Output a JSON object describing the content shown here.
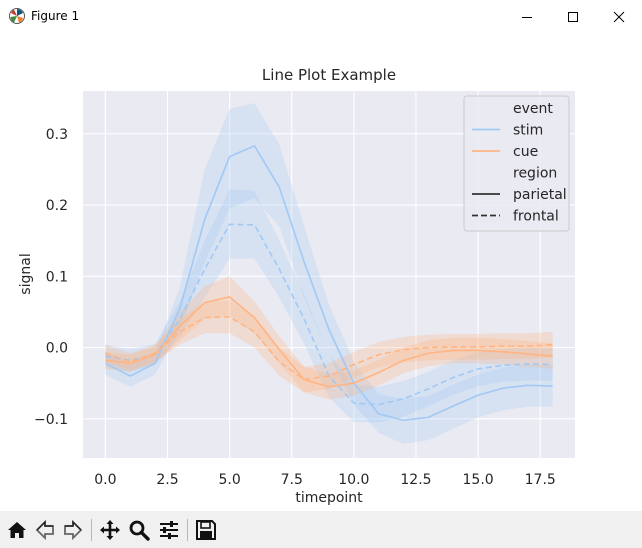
{
  "window": {
    "title": "Figure 1",
    "buttons": [
      "minimize",
      "maximize",
      "close"
    ]
  },
  "toolbar": {
    "tools": [
      "home-icon",
      "back-icon",
      "forward-icon",
      "pan-icon",
      "zoom-icon",
      "configure-icon",
      "save-icon"
    ]
  },
  "chart_data": {
    "type": "line",
    "title": "Line Plot Example",
    "xlabel": "timepoint",
    "ylabel": "signal",
    "xlim": [
      -0.9,
      18.9
    ],
    "ylim": [
      -0.155,
      0.36
    ],
    "xticks": [
      0.0,
      2.5,
      5.0,
      7.5,
      10.0,
      12.5,
      15.0,
      17.5
    ],
    "xtick_labels": [
      "0.0",
      "2.5",
      "5.0",
      "7.5",
      "10.0",
      "12.5",
      "15.0",
      "17.5"
    ],
    "yticks": [
      -0.1,
      0.0,
      0.1,
      0.2,
      0.3
    ],
    "ytick_labels": [
      "−0.1",
      "0.0",
      "0.1",
      "0.2",
      "0.3"
    ],
    "grid": true,
    "background": "#eaeaf2",
    "x": [
      0,
      1,
      2,
      3,
      4,
      5,
      6,
      7,
      8,
      9,
      10,
      11,
      12,
      13,
      14,
      15,
      16,
      17,
      18
    ],
    "series": [
      {
        "name": "stim / parietal",
        "event": "stim",
        "region": "parietal",
        "color": "#a1c9f4",
        "dash": "solid",
        "values": [
          -0.022,
          -0.04,
          -0.022,
          0.055,
          0.18,
          0.268,
          0.283,
          0.225,
          0.12,
          0.025,
          -0.05,
          -0.093,
          -0.102,
          -0.098,
          -0.082,
          -0.067,
          -0.057,
          -0.053,
          -0.054
        ],
        "lower": [
          -0.038,
          -0.055,
          -0.038,
          0.025,
          0.12,
          0.195,
          0.21,
          0.17,
          0.07,
          -0.01,
          -0.08,
          -0.12,
          -0.135,
          -0.13,
          -0.114,
          -0.098,
          -0.088,
          -0.083,
          -0.083
        ],
        "upper": [
          -0.006,
          -0.023,
          -0.006,
          0.085,
          0.25,
          0.335,
          0.343,
          0.285,
          0.17,
          0.06,
          -0.02,
          -0.065,
          -0.072,
          -0.068,
          -0.052,
          -0.038,
          -0.028,
          -0.024,
          -0.025
        ]
      },
      {
        "name": "stim / frontal",
        "event": "stim",
        "region": "frontal",
        "color": "#a1c9f4",
        "dash": "dashed",
        "values": [
          -0.012,
          -0.018,
          -0.01,
          0.04,
          0.11,
          0.173,
          0.172,
          0.11,
          0.04,
          -0.04,
          -0.078,
          -0.08,
          -0.072,
          -0.058,
          -0.042,
          -0.03,
          -0.025,
          -0.023,
          -0.024
        ],
        "lower": [
          -0.028,
          -0.034,
          -0.025,
          0.015,
          0.07,
          0.125,
          0.125,
          0.07,
          0.005,
          -0.07,
          -0.105,
          -0.105,
          -0.097,
          -0.082,
          -0.066,
          -0.054,
          -0.048,
          -0.046,
          -0.047
        ],
        "upper": [
          0.004,
          -0.002,
          0.005,
          0.065,
          0.15,
          0.222,
          0.22,
          0.15,
          0.075,
          -0.01,
          -0.052,
          -0.055,
          -0.047,
          -0.034,
          -0.018,
          -0.006,
          -0.002,
          0.0,
          -0.001
        ]
      },
      {
        "name": "cue / parietal",
        "event": "cue",
        "region": "parietal",
        "color": "#ffb482",
        "dash": "solid",
        "values": [
          -0.018,
          -0.022,
          -0.01,
          0.03,
          0.063,
          0.071,
          0.042,
          -0.003,
          -0.045,
          -0.055,
          -0.05,
          -0.035,
          -0.018,
          -0.008,
          -0.004,
          -0.004,
          -0.006,
          -0.009,
          -0.012
        ],
        "lower": [
          -0.03,
          -0.034,
          -0.022,
          0.01,
          0.04,
          0.045,
          0.02,
          -0.022,
          -0.063,
          -0.073,
          -0.068,
          -0.053,
          -0.036,
          -0.026,
          -0.022,
          -0.022,
          -0.024,
          -0.027,
          -0.03
        ],
        "upper": [
          -0.006,
          -0.01,
          0.002,
          0.05,
          0.086,
          0.1,
          0.065,
          0.016,
          -0.027,
          -0.037,
          -0.032,
          -0.017,
          0.0,
          0.01,
          0.014,
          0.014,
          0.012,
          0.009,
          0.006
        ]
      },
      {
        "name": "cue / frontal",
        "event": "cue",
        "region": "frontal",
        "color": "#ffb482",
        "dash": "dashed",
        "values": [
          -0.008,
          -0.02,
          -0.008,
          0.022,
          0.042,
          0.043,
          0.022,
          -0.02,
          -0.045,
          -0.04,
          -0.024,
          -0.01,
          -0.003,
          0.0,
          0.001,
          0.001,
          0.002,
          0.002,
          0.004
        ],
        "lower": [
          -0.02,
          -0.032,
          -0.02,
          0.004,
          0.02,
          0.02,
          0.0,
          -0.04,
          -0.063,
          -0.058,
          -0.042,
          -0.028,
          -0.021,
          -0.018,
          -0.017,
          -0.017,
          -0.016,
          -0.016,
          -0.014
        ],
        "upper": [
          0.004,
          -0.008,
          0.004,
          0.04,
          0.064,
          0.066,
          0.044,
          0.0,
          -0.027,
          -0.022,
          -0.006,
          0.008,
          0.015,
          0.018,
          0.019,
          0.019,
          0.02,
          0.02,
          0.022
        ]
      }
    ],
    "legend": {
      "position": "top-right",
      "entries": [
        {
          "label": "event",
          "kind": "header"
        },
        {
          "label": "stim",
          "color": "#a1c9f4",
          "dash": "solid"
        },
        {
          "label": "cue",
          "color": "#ffb482",
          "dash": "solid"
        },
        {
          "label": "region",
          "kind": "header"
        },
        {
          "label": "parietal",
          "color": "#333333",
          "dash": "solid"
        },
        {
          "label": "frontal",
          "color": "#333333",
          "dash": "dashed"
        }
      ]
    }
  }
}
